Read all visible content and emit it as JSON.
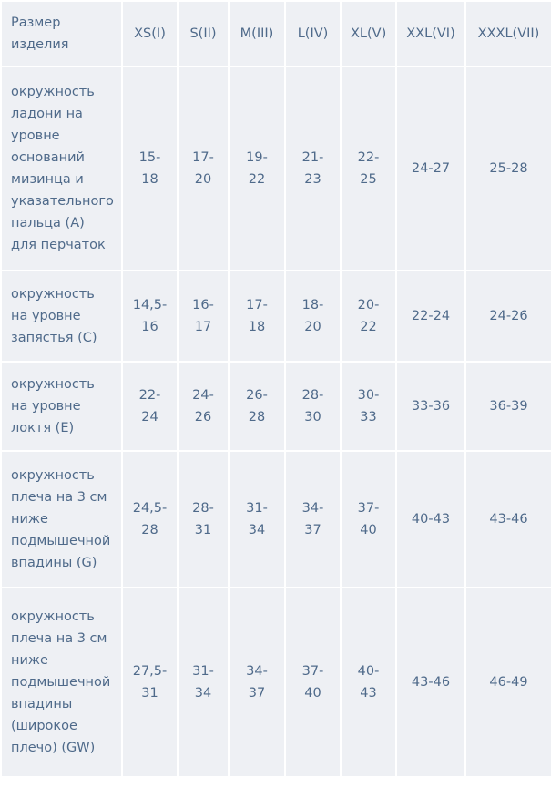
{
  "header": {
    "label": "Размер изделия",
    "sizes": [
      "XS(I)",
      "S(II)",
      "M(III)",
      "L(IV)",
      "XL(V)",
      "XXL(VI)",
      "XXXL(VII)"
    ]
  },
  "rows": [
    {
      "label": "окружность ладони на уровне оснований мизинца и указательного пальца (A) для перчаток",
      "values": [
        "15-18",
        "17-20",
        "19-22",
        "21-23",
        "22-25",
        "24-27",
        "25-28"
      ]
    },
    {
      "label": "окружность на уровне запястья (C)",
      "values": [
        "14,5-16",
        "16-17",
        "17-18",
        "18-20",
        "20-22",
        "22-24",
        "24-26"
      ]
    },
    {
      "label": "окружность на уровне локтя (E)",
      "values": [
        "22-24",
        "24-26",
        "26-28",
        "28-30",
        "30-33",
        "33-36",
        "36-39"
      ]
    },
    {
      "label": "окружность плеча на 3 см ниже подмышечной впадины (G)",
      "values": [
        "24,5-28",
        "28-31",
        "31-34",
        "34-37",
        "37-40",
        "40-43",
        "43-46"
      ]
    },
    {
      "label": "окружность плеча на 3 см ниже подмышечной впадины (широкое плечо) (GW)",
      "values": [
        "27,5-31",
        "31-34",
        "34-37",
        "37-40",
        "40-43",
        "43-46",
        "46-49"
      ]
    }
  ]
}
